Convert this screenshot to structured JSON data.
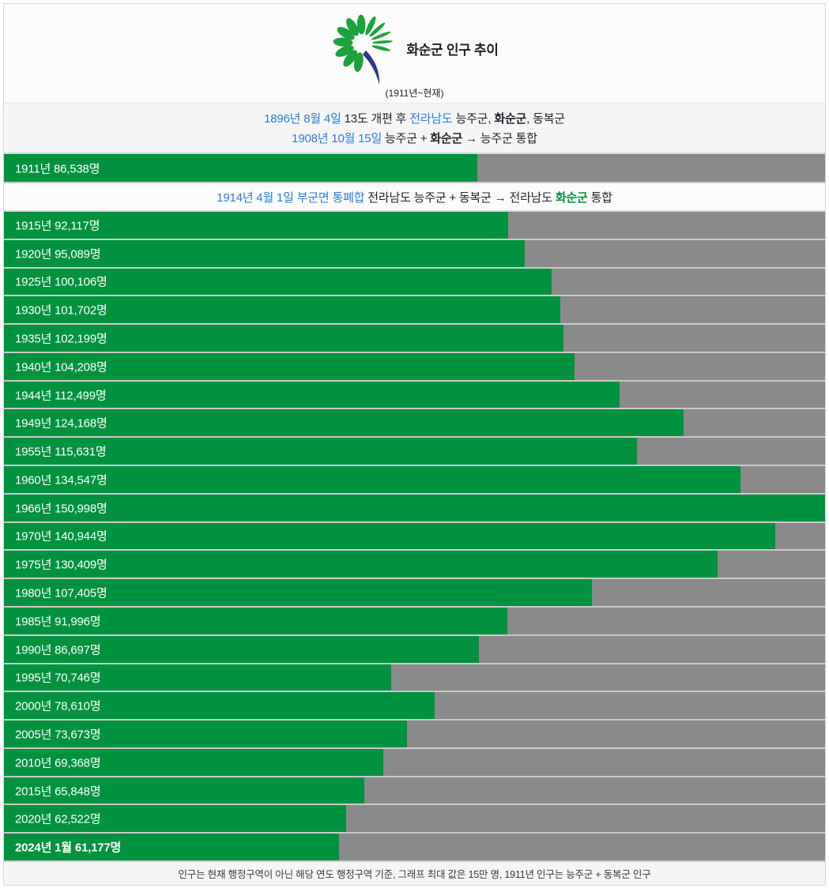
{
  "header": {
    "title": "화순군 인구 추이",
    "subtitle": "(1911년~현재)",
    "logo_icon": "hwasun-county-logo"
  },
  "history_note_1": {
    "line1": {
      "date_link": "1896년 8월 4일",
      "text_a": " 13도 개편 후 ",
      "region_link": "전라남도",
      "text_b": " 능주군, ",
      "county_bold": "화순군",
      "text_c": ", 동복군"
    },
    "line2": {
      "date_link": "1908년 10월 15일",
      "text_a": " 능주군 + ",
      "county_bold": "화순군",
      "text_b": " → 능주군 통합"
    }
  },
  "history_note_2": {
    "date_link": "1914년 4월 1일 부군면 통폐합",
    "text_a": " 전라남도 능주군 + 동복군 → 전라남도 ",
    "county_green": "화순군",
    "text_b": " 통합"
  },
  "footer": {
    "note": "인구는 현재 행정구역이 아닌 해당 연도 행정구역 기준, 그래프 최대 값은 15만 명, 1911년 인구는 능주군 + 동복군 인구"
  },
  "chart_data": {
    "type": "bar",
    "orientation": "horizontal",
    "title": "화순군 인구 추이 (1911년~현재)",
    "max_value": 150000,
    "unit": "명",
    "bar_color": "#00923F",
    "track_color": "#8A8A8A",
    "rows": [
      {
        "year": "1911년",
        "value": 86538,
        "label": "1911년 86,538명",
        "bold": false
      },
      {
        "year": "1915년",
        "value": 92117,
        "label": "1915년 92,117명",
        "bold": false
      },
      {
        "year": "1920년",
        "value": 95089,
        "label": "1920년 95,089명",
        "bold": false
      },
      {
        "year": "1925년",
        "value": 100106,
        "label": "1925년 100,106명",
        "bold": false
      },
      {
        "year": "1930년",
        "value": 101702,
        "label": "1930년 101,702명",
        "bold": false
      },
      {
        "year": "1935년",
        "value": 102199,
        "label": "1935년 102,199명",
        "bold": false
      },
      {
        "year": "1940년",
        "value": 104208,
        "label": "1940년 104,208명",
        "bold": false
      },
      {
        "year": "1944년",
        "value": 112499,
        "label": "1944년 112,499명",
        "bold": false
      },
      {
        "year": "1949년",
        "value": 124168,
        "label": "1949년 124,168명",
        "bold": false
      },
      {
        "year": "1955년",
        "value": 115631,
        "label": "1955년 115,631명",
        "bold": false
      },
      {
        "year": "1960년",
        "value": 134547,
        "label": "1960년 134,547명",
        "bold": false
      },
      {
        "year": "1966년",
        "value": 150998,
        "label": "1966년 150,998명",
        "bold": false
      },
      {
        "year": "1970년",
        "value": 140944,
        "label": "1970년 140,944명",
        "bold": false
      },
      {
        "year": "1975년",
        "value": 130409,
        "label": "1975년 130,409명",
        "bold": false
      },
      {
        "year": "1980년",
        "value": 107405,
        "label": "1980년 107,405명",
        "bold": false
      },
      {
        "year": "1985년",
        "value": 91996,
        "label": "1985년 91,996명",
        "bold": false
      },
      {
        "year": "1990년",
        "value": 86697,
        "label": "1990년 86,697명",
        "bold": false
      },
      {
        "year": "1995년",
        "value": 70746,
        "label": "1995년 70,746명",
        "bold": false
      },
      {
        "year": "2000년",
        "value": 78610,
        "label": "2000년 78,610명",
        "bold": false
      },
      {
        "year": "2005년",
        "value": 73673,
        "label": "2005년 73,673명",
        "bold": false
      },
      {
        "year": "2010년",
        "value": 69368,
        "label": "2010년 69,368명",
        "bold": false
      },
      {
        "year": "2015년",
        "value": 65848,
        "label": "2015년 65,848명",
        "bold": false
      },
      {
        "year": "2020년",
        "value": 62522,
        "label": "2020년 62,522명",
        "bold": false
      },
      {
        "year": "2024년 1월",
        "value": 61177,
        "label": "2024년 1월 61,177명",
        "bold": true
      }
    ]
  }
}
